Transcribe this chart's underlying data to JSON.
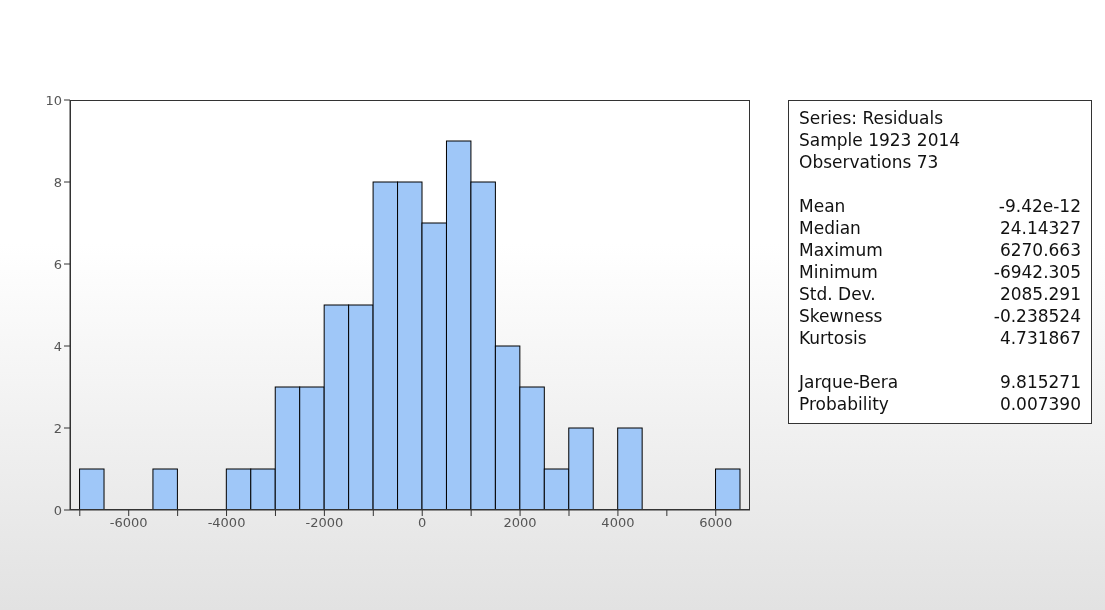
{
  "chart_data": {
    "type": "histogram",
    "bins": [
      -7000,
      -6500,
      -6000,
      -5500,
      -5000,
      -4500,
      -4000,
      -3500,
      -3000,
      -2500,
      -2000,
      -1500,
      -1000,
      -500,
      0,
      500,
      1000,
      1500,
      2000,
      2500,
      3000,
      3500,
      4000,
      4500,
      5000,
      5500,
      6000,
      6500
    ],
    "values": [
      1,
      0,
      0,
      1,
      0,
      0,
      1,
      1,
      3,
      3,
      5,
      5,
      8,
      8,
      7,
      9,
      8,
      4,
      3,
      1,
      2,
      0,
      2,
      0,
      0,
      0,
      1
    ],
    "color": "#9fc7f8",
    "xlim": [
      -7200,
      6700
    ],
    "xticks": [
      {
        "value": -7000,
        "label": null
      },
      -6000,
      {
        "value": -5000,
        "label": null
      },
      -4000,
      {
        "value": -3000,
        "label": null
      },
      -2000,
      {
        "value": -1000,
        "label": null
      },
      0,
      {
        "value": 1000,
        "label": null
      },
      2000,
      {
        "value": 3000,
        "label": null
      },
      4000,
      {
        "value": 5000,
        "label": null
      },
      6000
    ],
    "ylim": [
      0,
      10
    ],
    "yticks": [
      0,
      2,
      4,
      6,
      8,
      10
    ],
    "grid": false,
    "annotations": [
      "Series: Residuals",
      "Sample 1923 2014",
      "Observations 73",
      "Mean",
      "-9.42e-12",
      "Median",
      "24.14327",
      "Maximum",
      "6270.663",
      "Minimum",
      "-6942.305",
      "Std. Dev.",
      "2085.291",
      "Skewness",
      "-0.238524",
      "Kurtosis",
      "4.731867",
      "Jarque-Bera",
      "9.815271",
      "Probability",
      "0.007390"
    ]
  }
}
